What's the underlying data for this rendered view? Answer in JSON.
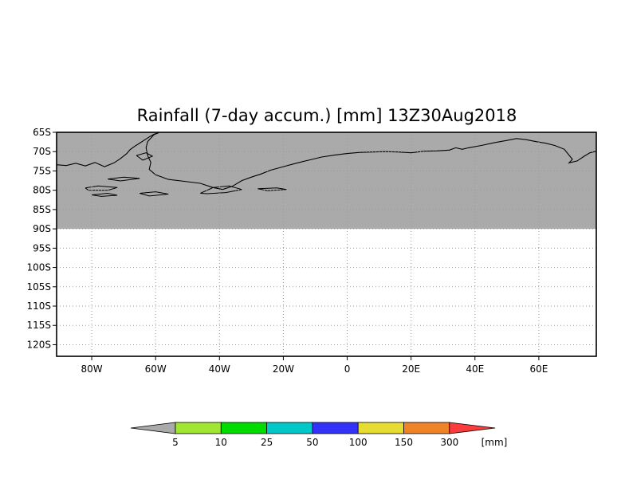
{
  "chart_data": {
    "type": "heatmap",
    "title": "Rainfall (7-day accum.) [mm] 13Z30Aug2018",
    "xlabel": "",
    "ylabel": "",
    "xlim": [
      -91,
      78
    ],
    "ylim": [
      -123,
      -65
    ],
    "x_ticks": [
      {
        "value": -80,
        "label": "80W"
      },
      {
        "value": -60,
        "label": "60W"
      },
      {
        "value": -40,
        "label": "40W"
      },
      {
        "value": -20,
        "label": "20W"
      },
      {
        "value": 0,
        "label": "0"
      },
      {
        "value": 20,
        "label": "20E"
      },
      {
        "value": 40,
        "label": "40E"
      },
      {
        "value": 60,
        "label": "60E"
      }
    ],
    "y_ticks": [
      {
        "value": -65,
        "label": "65S"
      },
      {
        "value": -70,
        "label": "70S"
      },
      {
        "value": -75,
        "label": "75S"
      },
      {
        "value": -80,
        "label": "80S"
      },
      {
        "value": -85,
        "label": "85S"
      },
      {
        "value": -90,
        "label": "90S"
      },
      {
        "value": -95,
        "label": "95S"
      },
      {
        "value": -100,
        "label": "100S"
      },
      {
        "value": -105,
        "label": "105S"
      },
      {
        "value": -110,
        "label": "110S"
      },
      {
        "value": -115,
        "label": "115S"
      },
      {
        "value": -120,
        "label": "120S"
      }
    ],
    "grid": true,
    "no_data_region": {
      "lat_min": -90,
      "lat_max": -65,
      "color": "#aaaaaa"
    },
    "legend": {
      "placement": "bottom",
      "unit": "[mm]",
      "below_min_color": "#aaaaaa",
      "bins": [
        {
          "label": "5",
          "color": "#a0e632"
        },
        {
          "label": "10",
          "color": "#00dc00"
        },
        {
          "label": "25",
          "color": "#00c8c8"
        },
        {
          "label": "50",
          "color": "#3232fa"
        },
        {
          "label": "100",
          "color": "#e6dc32"
        },
        {
          "label": "150",
          "color": "#f08228"
        },
        {
          "label": "300",
          "color": "#fa3c3c"
        }
      ]
    }
  }
}
